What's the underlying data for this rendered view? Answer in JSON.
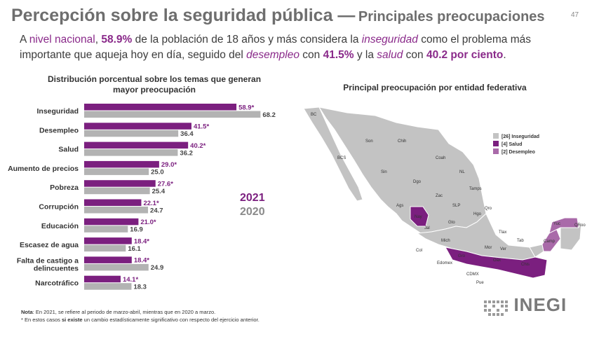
{
  "header": {
    "title_main": "Percepción sobre la seguridad pública —",
    "title_sub": "Principales preocupaciones",
    "page_number": "47"
  },
  "summary": {
    "p1": "A ",
    "p2": "nivel nacional",
    "p3": ", ",
    "p4": "58.9%",
    "p5": " de la población de 18 años y más considera la ",
    "p6": "inseguridad",
    "p7": " como el problema más importante que aqueja hoy en día, seguido del ",
    "p8": "desempleo",
    "p9": " con ",
    "p10": "41.5%",
    "p11": " y la ",
    "p12": "salud",
    "p13": " con ",
    "p14": "40.2 por ciento",
    "p15": "."
  },
  "chart_title": "Distribución porcentual sobre los temas que generan mayor preocupación",
  "chart_data": {
    "type": "bar",
    "orientation": "horizontal",
    "categories": [
      "Inseguridad",
      "Desempleo",
      "Salud",
      "Aumento de precios",
      "Pobreza",
      "Corrupción",
      "Educación",
      "Escasez de agua",
      "Falta de castigo a delincuentes",
      "Narcotráfico"
    ],
    "series": [
      {
        "name": "2021",
        "values": [
          58.9,
          41.5,
          40.2,
          29.0,
          27.6,
          22.1,
          21.0,
          18.4,
          18.4,
          14.1
        ],
        "labels": [
          "58.9*",
          "41.5*",
          "40.2*",
          "29.0*",
          "27.6*",
          "22.1*",
          "21.0*",
          "18.4*",
          "18.4*",
          "14.1*"
        ],
        "color": "#7b1f7f"
      },
      {
        "name": "2020",
        "values": [
          68.2,
          36.4,
          36.2,
          25.0,
          25.4,
          24.7,
          16.9,
          16.1,
          24.9,
          18.3
        ],
        "labels": [
          "68.2",
          "36.4",
          "36.2",
          "25.0",
          "25.4",
          "24.7",
          "16.9",
          "16.1",
          "24.9",
          "18.3"
        ],
        "color": "#b3b3b3"
      }
    ],
    "xlim": [
      0,
      70
    ],
    "legend_position": "right"
  },
  "map": {
    "title": "Principal preocupación por entidad federativa",
    "legend": [
      {
        "label": "[26] Inseguridad",
        "color": "#c3c3c3"
      },
      {
        "label": "[4]  Salud",
        "color": "#7b1f7f"
      },
      {
        "label": "[2]  Desempleo",
        "color": "#a96aa9"
      }
    ],
    "states": [
      "BC",
      "Son",
      "Chih",
      "BCS",
      "Sin",
      "Coah",
      "NL",
      "Dgo",
      "Tamps",
      "Zac",
      "SLP",
      "Ags",
      "Nay",
      "Gto",
      "Qro",
      "Jal",
      "Hgo",
      "Tlax",
      "Mich",
      "Mor",
      "Col",
      "Ver",
      "Tab",
      "Yuc",
      "QRoo",
      "Camp",
      "Gro",
      "Oax",
      "Chis",
      "Edomex",
      "CDMX",
      "Pue"
    ]
  },
  "notes": {
    "note1_bold": "Nota",
    "note1_rest": ": En 2021, se refiere al periodo de marzo-abril, mientras que en 2020 a marzo.",
    "note2_pre": "* En estos casos ",
    "note2_bold": "si existe",
    "note2_rest": " un cambio estadísticamente significativo con respecto del ejercicio anterior."
  },
  "logo": {
    "text": "INEGI"
  }
}
